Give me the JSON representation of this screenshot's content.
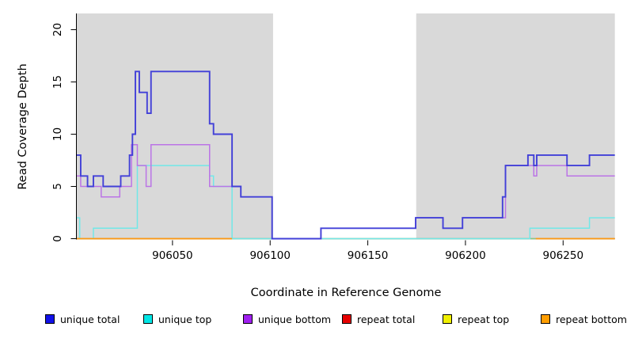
{
  "chart_data": {
    "type": "line",
    "subtype": "step-post",
    "title": "",
    "xlabel": "Coordinate in Reference Genome",
    "ylabel": "Read Coverage Depth",
    "xlim": [
      906001,
      906277
    ],
    "ylim": [
      0,
      21.5
    ],
    "x_ticks": [
      906050,
      906100,
      906150,
      906200,
      906250
    ],
    "y_ticks": [
      0,
      5,
      10,
      15,
      20
    ],
    "grid": false,
    "legend_position": "bottom",
    "background_color": "#ffffff",
    "shaded_regions": [
      {
        "name": "shaded-region-left",
        "from": 906001,
        "to": 906101.5,
        "color": "#d9d9d9"
      },
      {
        "name": "shaded-region-right",
        "from": 906174.8,
        "to": 906276.5,
        "color": "#d9d9d9"
      }
    ],
    "series": [
      {
        "name": "unique total",
        "legend_color": "#1111e8",
        "line_color": "#4240d8",
        "line_width": 1.9,
        "segments": [
          [
            [
              906001,
              8
            ],
            [
              906003,
              6
            ],
            [
              906006.5,
              5
            ],
            [
              906009.5,
              6
            ],
            [
              906014.5,
              5
            ],
            [
              906023.5,
              6
            ],
            [
              906028,
              8
            ],
            [
              906029.5,
              10
            ],
            [
              906031,
              16
            ],
            [
              906033,
              14
            ],
            [
              906037,
              12
            ],
            [
              906039,
              16
            ],
            [
              906069,
              11
            ],
            [
              906071,
              10
            ],
            [
              906080.5,
              5
            ],
            [
              906085,
              4
            ],
            [
              906101,
              0
            ],
            [
              906126,
              1
            ],
            [
              906174.5,
              2
            ],
            [
              906188.5,
              1
            ],
            [
              906198.5,
              2
            ],
            [
              906219,
              4
            ],
            [
              906220.5,
              7
            ],
            [
              906232,
              8
            ],
            [
              906235,
              7
            ],
            [
              906236.5,
              8
            ],
            [
              906252,
              7
            ],
            [
              906263.5,
              8
            ],
            [
              906276.5,
              8
            ]
          ]
        ]
      },
      {
        "name": "unique top",
        "legend_color": "#00e6e6",
        "line_color": "#72e8e8",
        "line_width": 1.5,
        "segments": [
          [
            [
              906001,
              2
            ],
            [
              906002.5,
              0
            ],
            [
              906009.5,
              1
            ],
            [
              906032,
              7
            ],
            [
              906069,
              6
            ],
            [
              906071,
              5
            ],
            [
              906080.5,
              0
            ],
            [
              906233,
              1
            ],
            [
              906263.5,
              2
            ],
            [
              906276.5,
              2
            ]
          ]
        ]
      },
      {
        "name": "unique bottom",
        "legend_color": "#a020f0",
        "line_color": "#bb74e6",
        "line_width": 1.5,
        "segments": [
          [
            [
              906001,
              6
            ],
            [
              906003,
              5
            ],
            [
              906013.5,
              4
            ],
            [
              906023,
              5
            ],
            [
              906029,
              9
            ],
            [
              906032,
              7
            ],
            [
              906036.5,
              5
            ],
            [
              906039,
              9
            ],
            [
              906069,
              5
            ],
            [
              906085,
              4
            ],
            [
              906101,
              0
            ],
            [
              906126,
              1
            ],
            [
              906174.5,
              2
            ],
            [
              906188.5,
              1
            ],
            [
              906198.5,
              2
            ],
            [
              906220.5,
              7
            ],
            [
              906235,
              6
            ],
            [
              906236.5,
              7
            ],
            [
              906252,
              6
            ],
            [
              906276.5,
              6
            ]
          ]
        ]
      },
      {
        "name": "repeat total",
        "legend_color": "#e60000",
        "line_color": "#dd2222",
        "line_width": 1.2,
        "segments": [
          [
            [
              906001,
              0
            ],
            [
              906276.5,
              0
            ]
          ]
        ]
      },
      {
        "name": "repeat top",
        "legend_color": "#f0f000",
        "line_color": "#82c882",
        "line_width": 1.6,
        "segments": [
          [
            [
              906001,
              0
            ],
            [
              906276.5,
              0
            ]
          ]
        ]
      },
      {
        "name": "repeat bottom",
        "legend_color": "#ff9d00",
        "line_color": "#ff9812",
        "line_width": 1.8,
        "segments": [
          [
            [
              906001,
              0
            ],
            [
              906080.5,
              0
            ]
          ],
          [
            [
              906236,
              0
            ],
            [
              906276.5,
              0
            ]
          ]
        ]
      }
    ],
    "draw_order": [
      3,
      4,
      1,
      2,
      5,
      0
    ]
  }
}
